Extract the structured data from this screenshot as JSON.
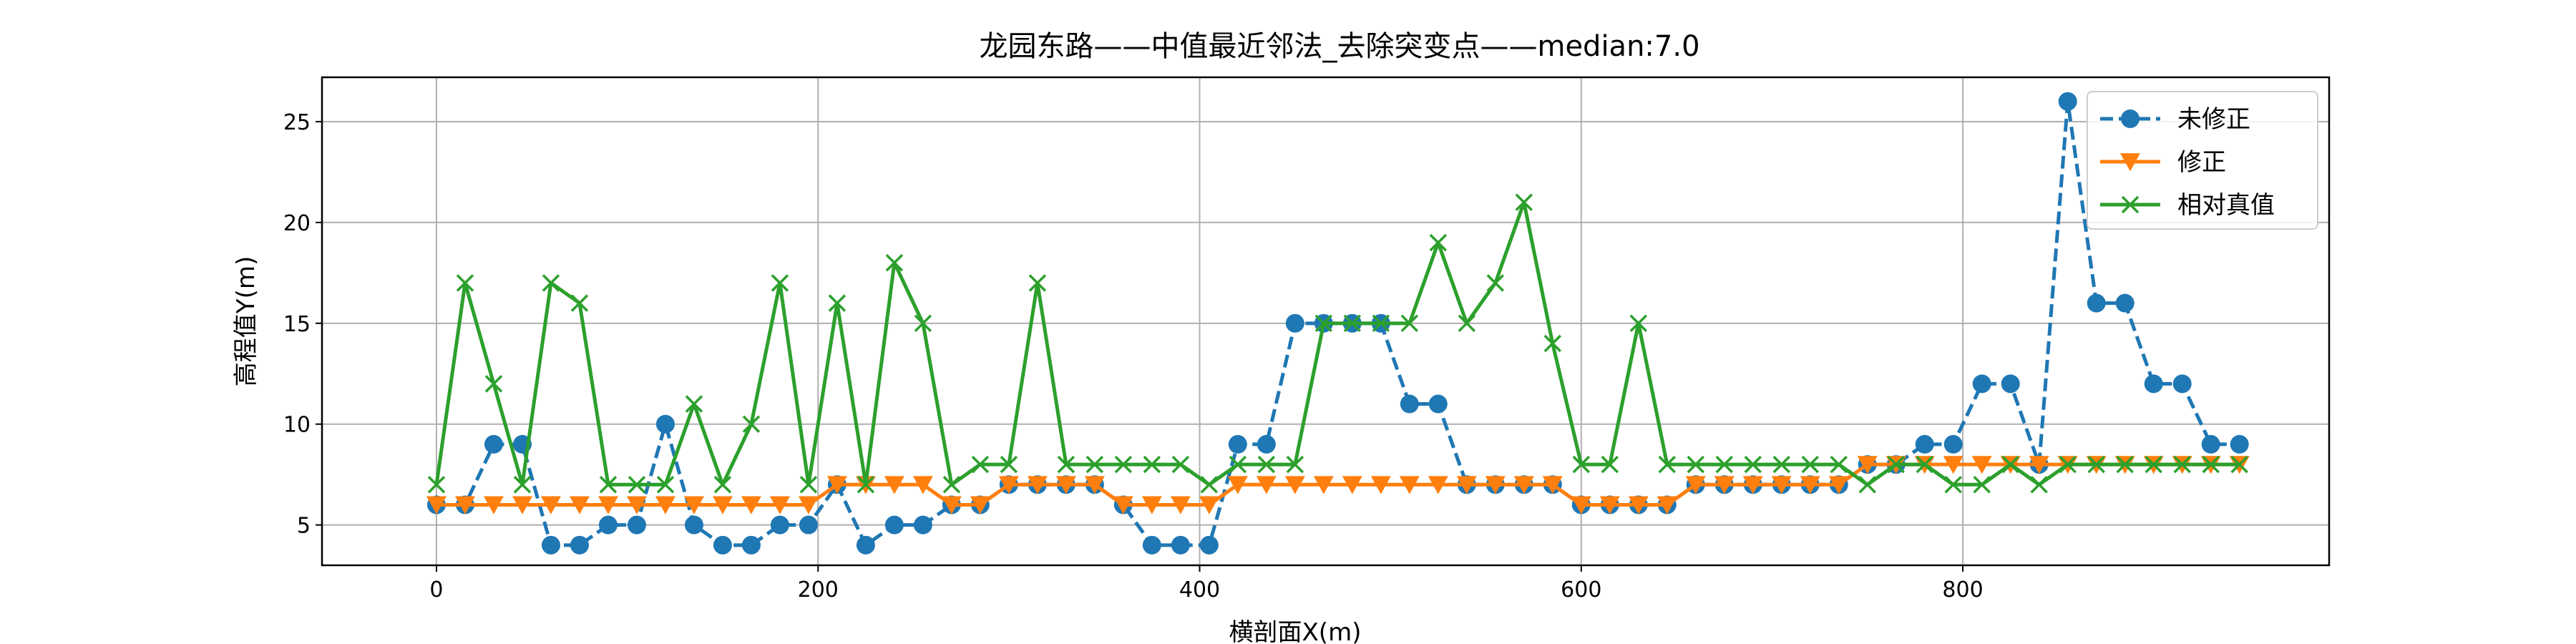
{
  "chart_data": {
    "type": "line",
    "title": "龙园东路——中值最近邻法_去除突变点——median:7.0",
    "xlabel": "横剖面X(m)",
    "ylabel": "高程值Y(m)",
    "xlim": [
      -60,
      992
    ],
    "ylim": [
      3,
      27.2
    ],
    "xticks": [
      0,
      200,
      400,
      600,
      800
    ],
    "yticks": [
      5,
      10,
      15,
      20,
      25
    ],
    "grid": true,
    "legend_position": "top-right",
    "x": [
      0,
      15,
      30,
      45,
      60,
      75,
      90,
      105,
      120,
      135,
      150,
      165,
      180,
      195,
      210,
      225,
      240,
      255,
      270,
      285,
      300,
      315,
      330,
      345,
      360,
      375,
      390,
      405,
      420,
      435,
      450,
      465,
      480,
      495,
      510,
      525,
      540,
      555,
      570,
      585,
      600,
      615,
      630,
      645,
      660,
      675,
      690,
      705,
      720,
      735,
      750,
      765,
      780,
      795,
      810,
      825,
      840,
      855,
      870,
      885,
      900,
      915,
      930,
      945
    ],
    "series": [
      {
        "name": "未修正",
        "color": "#1f77b4",
        "line_style": "dashed",
        "marker": "circle",
        "values": [
          6,
          6,
          9,
          9,
          4,
          4,
          5,
          5,
          10,
          5,
          4,
          4,
          5,
          5,
          7,
          4,
          5,
          5,
          6,
          6,
          7,
          7,
          7,
          7,
          6,
          4,
          4,
          4,
          9,
          9,
          15,
          15,
          15,
          15,
          11,
          11,
          7,
          7,
          7,
          7,
          6,
          6,
          6,
          6,
          7,
          7,
          7,
          7,
          7,
          7,
          8,
          8,
          9,
          9,
          12,
          12,
          8,
          26,
          16,
          16,
          12,
          12,
          9,
          9
        ]
      },
      {
        "name": "修正",
        "color": "#ff7f0e",
        "line_style": "solid",
        "marker": "triangle-down",
        "values": [
          6,
          6,
          6,
          6,
          6,
          6,
          6,
          6,
          6,
          6,
          6,
          6,
          6,
          6,
          7,
          7,
          7,
          7,
          6,
          6,
          7,
          7,
          7,
          7,
          6,
          6,
          6,
          6,
          7,
          7,
          7,
          7,
          7,
          7,
          7,
          7,
          7,
          7,
          7,
          7,
          6,
          6,
          6,
          6,
          7,
          7,
          7,
          7,
          7,
          7,
          8,
          8,
          8,
          8,
          8,
          8,
          8,
          8,
          8,
          8,
          8,
          8,
          8,
          8
        ]
      },
      {
        "name": "相对真值",
        "color": "#2ca02c",
        "line_style": "solid",
        "marker": "x",
        "values": [
          7,
          17,
          12,
          7,
          17,
          16,
          7,
          7,
          7,
          11,
          7,
          10,
          17,
          7,
          16,
          7,
          18,
          15,
          7,
          8,
          8,
          17,
          8,
          8,
          8,
          8,
          8,
          7,
          8,
          8,
          8,
          15,
          15,
          15,
          15,
          19,
          15,
          17,
          21,
          14,
          8,
          8,
          15,
          8,
          8,
          8,
          8,
          8,
          8,
          8,
          7,
          8,
          8,
          7,
          7,
          8,
          7,
          8,
          8,
          8,
          8,
          8,
          8,
          8
        ]
      }
    ]
  }
}
